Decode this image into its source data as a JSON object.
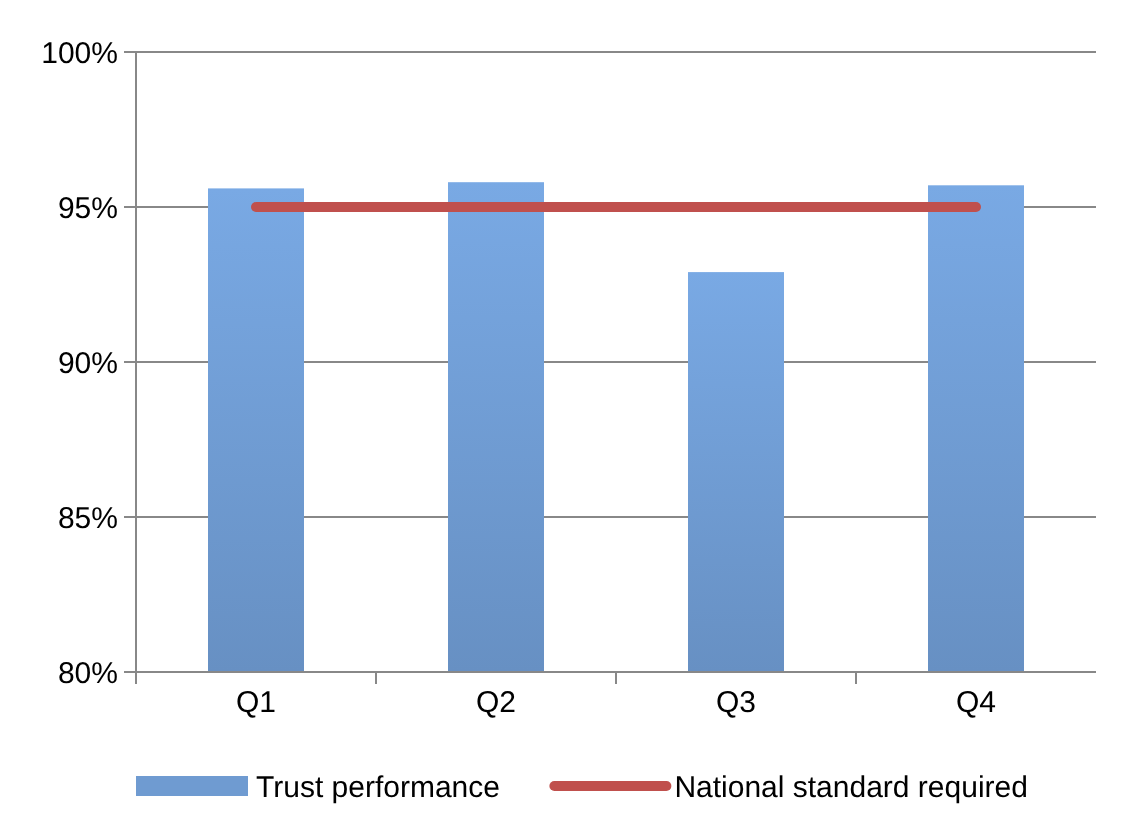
{
  "chart_data": {
    "type": "bar",
    "categories": [
      "Q1",
      "Q2",
      "Q3",
      "Q4"
    ],
    "series": [
      {
        "name": "Trust performance",
        "color": "#6f9bd1",
        "values": [
          95.6,
          95.8,
          92.9,
          95.7
        ]
      },
      {
        "name": "National standard required",
        "type": "line",
        "color": "#c0504d",
        "values": [
          95,
          95,
          95,
          95
        ]
      }
    ],
    "ylim": [
      80,
      100
    ],
    "yticks": [
      {
        "value": 80,
        "label": "80%"
      },
      {
        "value": 85,
        "label": "85%"
      },
      {
        "value": 90,
        "label": "90%"
      },
      {
        "value": 95,
        "label": "95%"
      },
      {
        "value": 100,
        "label": "100%"
      }
    ],
    "grid": "y",
    "legend": "bottom"
  }
}
